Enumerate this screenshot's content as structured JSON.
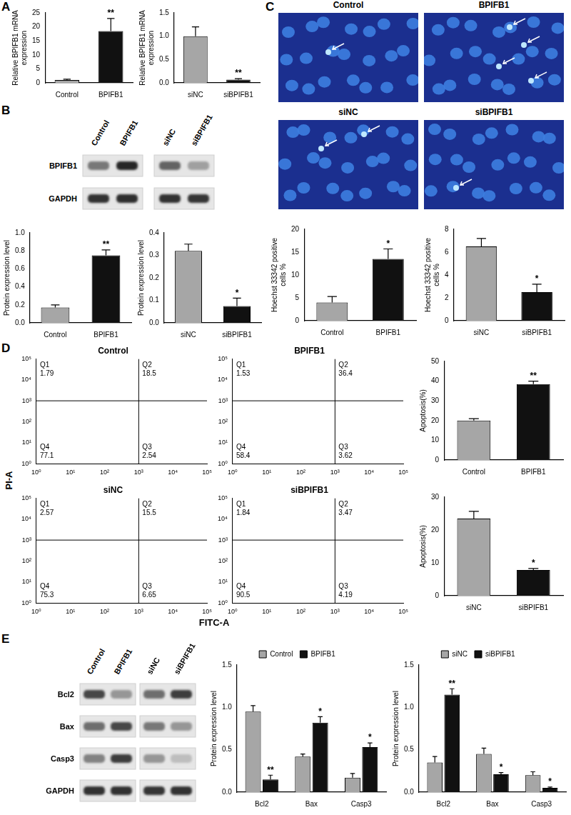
{
  "panel_labels": [
    "A",
    "B",
    "C",
    "D",
    "E"
  ],
  "blots": [
    {
      "lanes": [
        "Control",
        "BPIFB1",
        "siNC",
        "siBPIFB1"
      ],
      "rows": [
        "BPIFB1",
        "GAPDH"
      ]
    },
    {
      "lanes": [
        "Control",
        "BPIFB1",
        "siNC",
        "siBPIFB1"
      ],
      "rows": [
        "Bcl2",
        "Bax",
        "Casp3",
        "GAPDH"
      ]
    }
  ],
  "images": {
    "labels": [
      "Control",
      "BPIFB1",
      "siNC",
      "siBPIFB1"
    ]
  },
  "flow_axis_labels": {
    "x": "FITC-A",
    "y": "PI-A"
  },
  "chart_data": [
    {
      "type": "bar",
      "y_label": [
        "Relative BPIFB1 mRNA",
        "expression"
      ],
      "categories": [
        "Control",
        "BPIFB1"
      ],
      "values": [
        1,
        18.5
      ],
      "errors": [
        0.3,
        4.5
      ],
      "significance": [
        null,
        "**"
      ],
      "colors": [
        "#a6a6a6",
        "#111111"
      ],
      "ylim": [
        0,
        25
      ],
      "yticks": [
        0,
        5,
        10,
        15,
        20,
        25
      ],
      "grid": false
    },
    {
      "type": "bar",
      "y_label": [
        "Relative BPIFB1 mRNA",
        "expression"
      ],
      "categories": [
        "siNC",
        "siBPIFB1"
      ],
      "values": [
        1.0,
        0.07
      ],
      "errors": [
        0.2,
        0.02
      ],
      "significance": [
        null,
        "**"
      ],
      "colors": [
        "#a6a6a6",
        "#111111"
      ],
      "ylim": [
        0,
        1.5
      ],
      "yticks": [
        {
          "value": 0,
          "label": "0.0"
        },
        0.5,
        {
          "value": 1,
          "label": "1.0"
        },
        1.5
      ],
      "grid": false
    },
    {
      "type": "bar",
      "y_label": "Protein expression level",
      "categories": [
        "Control",
        "BPIFB1"
      ],
      "values": [
        0.17,
        0.75
      ],
      "errors": [
        0.03,
        0.06
      ],
      "significance": [
        null,
        "**"
      ],
      "colors": [
        "#a6a6a6",
        "#111111"
      ],
      "ylim": [
        0,
        1.0
      ],
      "yticks": [
        {
          "value": 0,
          "label": "0.0"
        },
        0.2,
        0.4,
        0.6,
        0.8,
        {
          "value": 1,
          "label": "1.0"
        }
      ],
      "grid": false
    },
    {
      "type": "bar",
      "y_label": "Protein expression level",
      "categories": [
        "siNC",
        "siBPIFB1"
      ],
      "values": [
        0.32,
        0.075
      ],
      "errors": [
        0.03,
        0.035
      ],
      "significance": [
        null,
        "*"
      ],
      "colors": [
        "#a6a6a6",
        "#111111"
      ],
      "ylim": [
        0,
        0.4
      ],
      "yticks": [
        {
          "value": 0,
          "label": "0.0"
        },
        0.1,
        0.2,
        0.3,
        0.4
      ],
      "grid": false
    },
    {
      "type": "bar",
      "y_label": [
        "Hoechst 33342 positive",
        "cells %"
      ],
      "categories": [
        "Control",
        "BPIFB1"
      ],
      "values": [
        4,
        13.5
      ],
      "errors": [
        1.3,
        2.2
      ],
      "significance": [
        null,
        "*"
      ],
      "colors": [
        "#a6a6a6",
        "#111111"
      ],
      "ylim": [
        0,
        20
      ],
      "yticks": [
        0,
        5,
        10,
        15,
        20
      ],
      "grid": false
    },
    {
      "type": "bar",
      "y_label": [
        "Hoechst 33342 positive",
        "cells %"
      ],
      "categories": [
        "siNC",
        "siBPIFB1"
      ],
      "values": [
        6.5,
        2.5
      ],
      "errors": [
        0.7,
        0.7
      ],
      "significance": [
        null,
        "*"
      ],
      "colors": [
        "#a6a6a6",
        "#111111"
      ],
      "ylim": [
        0,
        8
      ],
      "yticks": [
        0,
        2,
        4,
        6,
        8
      ],
      "grid": false
    },
    {
      "type": "quadrant",
      "title": "Control",
      "log": true,
      "grid": false,
      "xlim": [
        1,
        100000
      ],
      "ylim": [
        1,
        100000
      ],
      "xticks": [
        {
          "value": 1,
          "label": "10⁰"
        },
        {
          "value": 10,
          "label": "10¹"
        },
        {
          "value": 100,
          "label": "10²"
        },
        {
          "value": 1000,
          "label": "10³"
        },
        {
          "value": 10000,
          "label": "10⁴"
        },
        {
          "value": 100000,
          "label": "10⁵"
        }
      ],
      "yticks": [
        {
          "value": 1,
          "label": "10⁰"
        },
        {
          "value": 10,
          "label": "10¹"
        },
        {
          "value": 100,
          "label": "10²"
        },
        {
          "value": 1000,
          "label": "10³"
        },
        {
          "value": 10000,
          "label": "10⁴"
        },
        {
          "value": 100000,
          "label": "10⁵"
        }
      ],
      "gates": {
        "x": 1000,
        "y": 1000
      },
      "quadrants": [
        {
          "name": "Q1",
          "value": 1.79
        },
        {
          "name": "Q2",
          "value": 18.5
        },
        {
          "name": "Q3",
          "value": 2.54
        },
        {
          "name": "Q4",
          "value": 77.1
        }
      ]
    },
    {
      "type": "quadrant",
      "title": "BPIFB1",
      "log": true,
      "grid": false,
      "xlim": [
        1,
        100000
      ],
      "ylim": [
        1,
        100000
      ],
      "xticks": [
        {
          "value": 1,
          "label": "10⁰"
        },
        {
          "value": 10,
          "label": "10¹"
        },
        {
          "value": 100,
          "label": "10²"
        },
        {
          "value": 1000,
          "label": "10³"
        },
        {
          "value": 10000,
          "label": "10⁴"
        },
        {
          "value": 100000,
          "label": "10⁵"
        }
      ],
      "yticks": [
        {
          "value": 1,
          "label": "10⁰"
        },
        {
          "value": 10,
          "label": "10¹"
        },
        {
          "value": 100,
          "label": "10²"
        },
        {
          "value": 1000,
          "label": "10³"
        },
        {
          "value": 10000,
          "label": "10⁴"
        },
        {
          "value": 100000,
          "label": "10⁵"
        }
      ],
      "gates": {
        "x": 1000,
        "y": 1000
      },
      "quadrants": [
        {
          "name": "Q1",
          "value": 1.53
        },
        {
          "name": "Q2",
          "value": 36.4
        },
        {
          "name": "Q3",
          "value": 3.62
        },
        {
          "name": "Q4",
          "value": 58.4
        }
      ]
    },
    {
      "type": "quadrant",
      "title": "siNC",
      "log": true,
      "grid": false,
      "xlim": [
        1,
        100000
      ],
      "ylim": [
        1,
        100000
      ],
      "xticks": [
        {
          "value": 1,
          "label": "10⁰"
        },
        {
          "value": 10,
          "label": "10¹"
        },
        {
          "value": 100,
          "label": "10²"
        },
        {
          "value": 1000,
          "label": "10³"
        },
        {
          "value": 10000,
          "label": "10⁴"
        },
        {
          "value": 100000,
          "label": "10⁵"
        }
      ],
      "yticks": [
        {
          "value": 1,
          "label": "10⁰"
        },
        {
          "value": 10,
          "label": "10¹"
        },
        {
          "value": 100,
          "label": "10²"
        },
        {
          "value": 1000,
          "label": "10³"
        },
        {
          "value": 10000,
          "label": "10⁴"
        },
        {
          "value": 100000,
          "label": "10⁵"
        }
      ],
      "gates": {
        "x": 1000,
        "y": 1000
      },
      "quadrants": [
        {
          "name": "Q1",
          "value": 2.57
        },
        {
          "name": "Q2",
          "value": 15.5
        },
        {
          "name": "Q3",
          "value": 6.65
        },
        {
          "name": "Q4",
          "value": 75.3
        }
      ]
    },
    {
      "type": "quadrant",
      "title": "siBPIFB1",
      "log": true,
      "grid": false,
      "xlim": [
        1,
        100000
      ],
      "ylim": [
        1,
        100000
      ],
      "xticks": [
        {
          "value": 1,
          "label": "10⁰"
        },
        {
          "value": 10,
          "label": "10¹"
        },
        {
          "value": 100,
          "label": "10²"
        },
        {
          "value": 1000,
          "label": "10³"
        },
        {
          "value": 10000,
          "label": "10⁴"
        },
        {
          "value": 100000,
          "label": "10⁵"
        }
      ],
      "yticks": [
        {
          "value": 1,
          "label": "10⁰"
        },
        {
          "value": 10,
          "label": "10¹"
        },
        {
          "value": 100,
          "label": "10²"
        },
        {
          "value": 1000,
          "label": "10³"
        },
        {
          "value": 10000,
          "label": "10⁴"
        },
        {
          "value": 100000,
          "label": "10⁵"
        }
      ],
      "gates": {
        "x": 1000,
        "y": 1000
      },
      "quadrants": [
        {
          "name": "Q1",
          "value": 1.84
        },
        {
          "name": "Q2",
          "value": 3.47
        },
        {
          "name": "Q3",
          "value": 4.19
        },
        {
          "name": "Q4",
          "value": 90.5
        }
      ]
    },
    {
      "type": "bar",
      "y_label": "Apoptosis(%)",
      "categories": [
        "Control",
        "BPIFB1"
      ],
      "values": [
        20,
        38.5
      ],
      "errors": [
        1,
        1.5
      ],
      "significance": [
        null,
        "**"
      ],
      "colors": [
        "#a6a6a6",
        "#111111"
      ],
      "ylim": [
        0,
        50
      ],
      "yticks": [
        0,
        10,
        20,
        30,
        40,
        50
      ],
      "grid": false
    },
    {
      "type": "bar",
      "y_label": "Apoptosis(%)",
      "categories": [
        "siNC",
        "siBPIFB1"
      ],
      "values": [
        23.5,
        7.8
      ],
      "errors": [
        2.2,
        0.5
      ],
      "significance": [
        null,
        "*"
      ],
      "colors": [
        "#a6a6a6",
        "#111111"
      ],
      "ylim": [
        0,
        30
      ],
      "yticks": [
        0,
        10,
        20,
        30
      ],
      "grid": false
    },
    {
      "type": "bar",
      "y_label": "Protein expression level",
      "categories": [
        "Bcl2",
        "Bax",
        "Casp3"
      ],
      "legend": "top",
      "grid": false,
      "series": [
        {
          "name": "Control",
          "color": "#a6a6a6",
          "values": [
            0.95,
            0.42,
            0.17
          ],
          "errors": [
            0.07,
            0.03,
            0.05
          ],
          "significance": [
            null,
            null,
            null
          ]
        },
        {
          "name": "BPIFB1",
          "color": "#111111",
          "values": [
            0.15,
            0.82,
            0.53
          ],
          "errors": [
            0.05,
            0.07,
            0.05
          ],
          "significance": [
            "**",
            "*",
            "*"
          ]
        }
      ],
      "ylim": [
        0,
        1.5
      ],
      "yticks": [
        {
          "value": 0,
          "label": "0.0"
        },
        0.5,
        {
          "value": 1,
          "label": "1.0"
        },
        1.5
      ]
    },
    {
      "type": "bar",
      "y_label": "Protein expression level",
      "categories": [
        "Bcl2",
        "Bax",
        "Casp3"
      ],
      "legend": "top",
      "grid": false,
      "series": [
        {
          "name": "siNC",
          "color": "#a6a6a6",
          "values": [
            0.35,
            0.45,
            0.2
          ],
          "errors": [
            0.07,
            0.07,
            0.04
          ],
          "significance": [
            null,
            null,
            null
          ]
        },
        {
          "name": "siBPIFB1",
          "color": "#111111",
          "values": [
            1.15,
            0.21,
            0.05
          ],
          "errors": [
            0.07,
            0.02,
            0.01
          ],
          "significance": [
            "**",
            "*",
            "*"
          ]
        }
      ],
      "ylim": [
        0,
        1.5
      ],
      "yticks": [
        {
          "value": 0,
          "label": "0.0"
        },
        0.5,
        {
          "value": 1,
          "label": "1.0"
        },
        1.5
      ]
    }
  ]
}
